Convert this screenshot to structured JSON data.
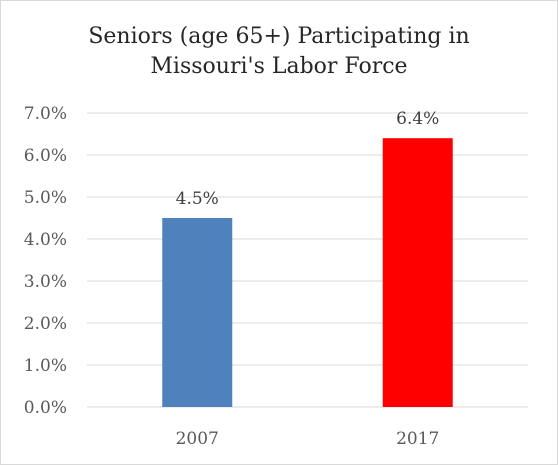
{
  "chart_data": {
    "type": "bar",
    "title": "Seniors (age 65+) Participating in\nMissouri's Labor Force",
    "categories": [
      "2007",
      "2017"
    ],
    "series": [
      {
        "values": [
          4.5,
          6.4
        ],
        "data_labels": [
          "4.5%",
          "6.4%"
        ],
        "colors": [
          "#4f81bd",
          "#ff0000"
        ]
      }
    ],
    "y_ticks": [
      0.0,
      1.0,
      2.0,
      3.0,
      4.0,
      5.0,
      6.0,
      7.0
    ],
    "y_tick_labels": [
      "0.0%",
      "1.0%",
      "2.0%",
      "3.0%",
      "4.0%",
      "5.0%",
      "6.0%",
      "7.0%"
    ],
    "ylim": [
      0,
      7
    ],
    "xlabel": "",
    "ylabel": "",
    "grid": true,
    "legend": "none",
    "gridline_color": "#d9d9d9"
  }
}
